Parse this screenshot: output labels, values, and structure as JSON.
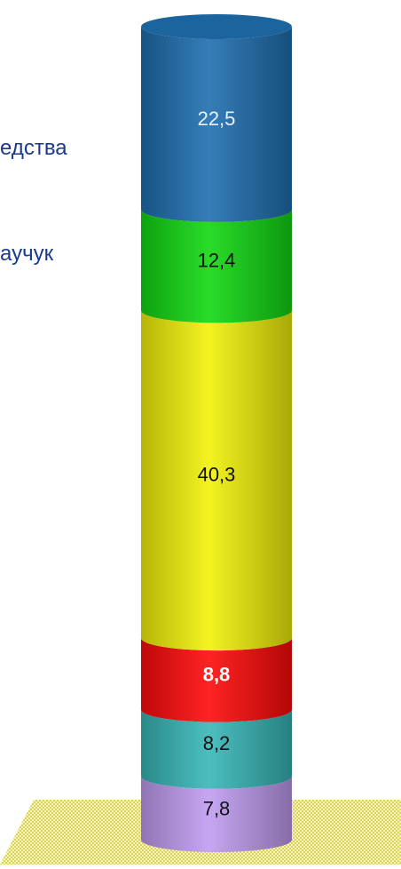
{
  "chart_data": {
    "type": "bar",
    "subtype": "stacked-3d-cylinder",
    "categories": [
      ""
    ],
    "series": [
      {
        "value": 7.8,
        "label": "7,8",
        "color": "#c09cf0"
      },
      {
        "value": 8.2,
        "label": "8,2",
        "color": "#38b7b7"
      },
      {
        "value": 8.8,
        "label": "8,8",
        "color": "#ff0a0a"
      },
      {
        "value": 40.3,
        "label": "40,3",
        "color": "#f2f20a"
      },
      {
        "value": 12.4,
        "label": "12,4",
        "color": "#12d812"
      },
      {
        "value": 22.5,
        "label": "22,5",
        "color": "#1f6fb0"
      }
    ],
    "legend_labels_partial": [
      "едства",
      "аучук"
    ],
    "colors": {
      "legend_text": "#1a3a8c",
      "floor": "#e3df70"
    }
  }
}
